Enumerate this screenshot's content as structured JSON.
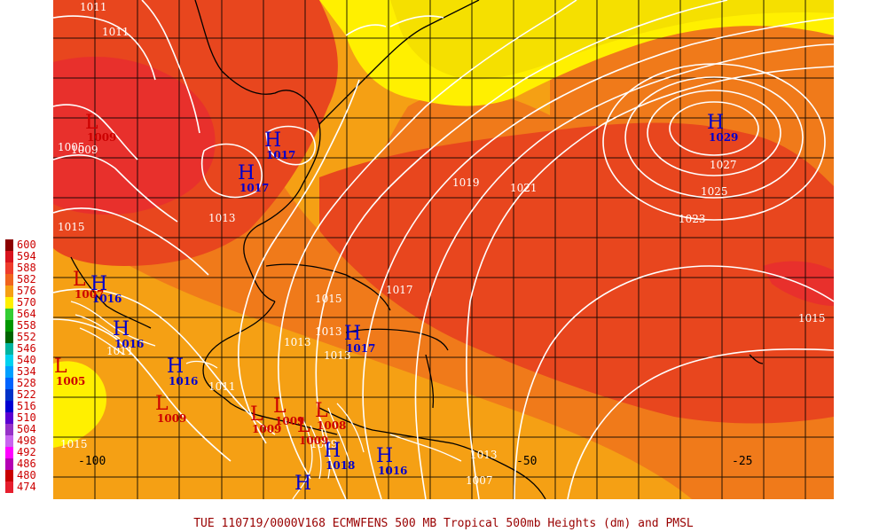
{
  "footer": {
    "caption": "TUE 110719/0000V168  ECMWFENS  500 MB Tropical 500mb Heights (dm) and PMSL"
  },
  "legend": {
    "items": [
      {
        "label": "600",
        "color": "#8b0000"
      },
      {
        "label": "594",
        "color": "#d8141e"
      },
      {
        "label": "588",
        "color": "#ee3c2c"
      },
      {
        "label": "582",
        "color": "#f0641e"
      },
      {
        "label": "576",
        "color": "#f5a014"
      },
      {
        "label": "570",
        "color": "#fff000"
      },
      {
        "label": "564",
        "color": "#32cd32"
      },
      {
        "label": "558",
        "color": "#009600"
      },
      {
        "label": "552",
        "color": "#006400"
      },
      {
        "label": "546",
        "color": "#00b4a0"
      },
      {
        "label": "540",
        "color": "#00d2f0"
      },
      {
        "label": "534",
        "color": "#00a0ff"
      },
      {
        "label": "528",
        "color": "#0064ff"
      },
      {
        "label": "522",
        "color": "#0032c8"
      },
      {
        "label": "516",
        "color": "#0000d2"
      },
      {
        "label": "510",
        "color": "#5a00d2"
      },
      {
        "label": "504",
        "color": "#9632c8"
      },
      {
        "label": "498",
        "color": "#c864f0"
      },
      {
        "label": "492",
        "color": "#ff00ff"
      },
      {
        "label": "486",
        "color": "#b400b4"
      },
      {
        "label": "480",
        "color": "#c80000"
      },
      {
        "label": "474",
        "color": "#e61e2d"
      }
    ]
  },
  "axes": {
    "longitude_labels": [
      {
        "label": "-100",
        "value": -100
      },
      {
        "label": "-50",
        "value": -50
      },
      {
        "label": "-25",
        "value": -25
      }
    ]
  },
  "isobar_labels": [
    "1011",
    "1011",
    "1005",
    "1009",
    "1019",
    "1021",
    "1027",
    "1025",
    "1023",
    "1017",
    "1015",
    "1013",
    "1015",
    "1013",
    "1013",
    "1015",
    "1011",
    "1011",
    "1009",
    "1013",
    "1007",
    "1013",
    "1015"
  ],
  "pressure_centers": [
    {
      "type": "H",
      "value": "1029",
      "color": "#0000cc"
    },
    {
      "type": "H",
      "value": "1017",
      "color": "#0000cc"
    },
    {
      "type": "H",
      "value": "1017",
      "color": "#0000cc"
    },
    {
      "type": "H",
      "value": "1016",
      "color": "#0000cc"
    },
    {
      "type": "H",
      "value": "1016",
      "color": "#0000cc"
    },
    {
      "type": "H",
      "value": "1016",
      "color": "#0000cc"
    },
    {
      "type": "H",
      "value": "1017",
      "color": "#0000cc"
    },
    {
      "type": "H",
      "value": "1018",
      "color": "#0000cc"
    },
    {
      "type": "H",
      "value": "1016",
      "color": "#0000cc"
    },
    {
      "type": "H",
      "value": "",
      "color": "#0000cc"
    },
    {
      "type": "L",
      "value": "1009",
      "color": "#cc0000"
    },
    {
      "type": "L",
      "value": "1005",
      "color": "#cc0000"
    },
    {
      "type": "L",
      "value": "1009",
      "color": "#cc0000"
    },
    {
      "type": "L",
      "value": "1009",
      "color": "#cc0000"
    },
    {
      "type": "L",
      "value": "1009",
      "color": "#cc0000"
    },
    {
      "type": "L",
      "value": "1009",
      "color": "#cc0000"
    },
    {
      "type": "L",
      "value": "1008",
      "color": "#cc0000"
    },
    {
      "type": "L",
      "value": "1007",
      "color": "#cc0000"
    }
  ]
}
